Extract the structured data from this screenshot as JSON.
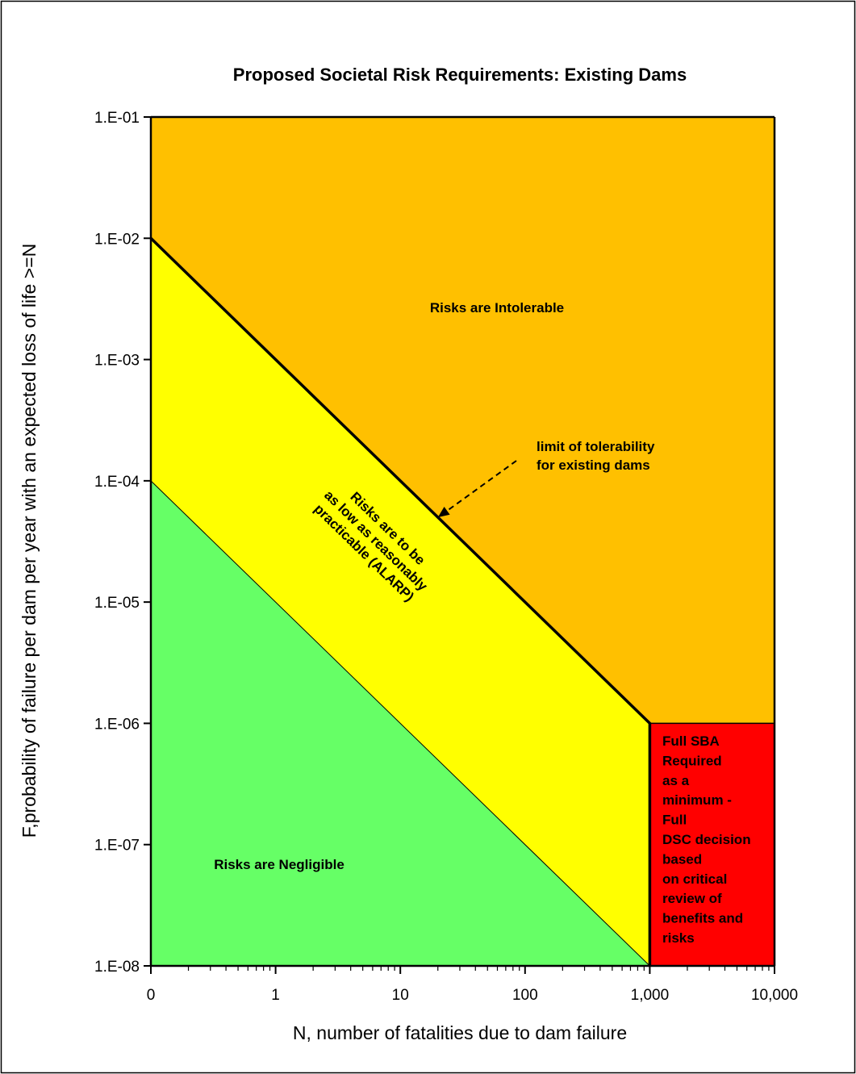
{
  "chart_data": {
    "type": "area",
    "title": "Proposed Societal Risk Requirements: Existing Dams",
    "xlabel": "N, number of fatalities due to dam failure",
    "ylabel": "F,probability of failure per dam per year with an expected loss of life >=N",
    "x_scale": "log",
    "y_scale": "log",
    "x_ticks": [
      {
        "value": 0.1,
        "label": "0"
      },
      {
        "value": 1,
        "label": "1"
      },
      {
        "value": 10,
        "label": "10"
      },
      {
        "value": 100,
        "label": "100"
      },
      {
        "value": 1000,
        "label": "1,000"
      },
      {
        "value": 10000,
        "label": "10,000"
      }
    ],
    "y_ticks": [
      {
        "value": 0.1,
        "label": "1.E-01"
      },
      {
        "value": 0.01,
        "label": "1.E-02"
      },
      {
        "value": 0.001,
        "label": "1.E-03"
      },
      {
        "value": 0.0001,
        "label": "1.E-04"
      },
      {
        "value": 1e-05,
        "label": "1.E-05"
      },
      {
        "value": 1e-06,
        "label": "1.E-06"
      },
      {
        "value": 1e-07,
        "label": "1.E-07"
      },
      {
        "value": 1e-08,
        "label": "1.E-08"
      }
    ],
    "xlim": [
      0.1,
      10000
    ],
    "ylim": [
      1e-08,
      0.1
    ],
    "regions": [
      {
        "label": "Risks are Intolerable",
        "color": "#ffc000",
        "points": [
          [
            0.1,
            0.1
          ],
          [
            10000,
            0.1
          ],
          [
            10000,
            1e-06
          ],
          [
            1000,
            1e-06
          ],
          [
            0.1,
            0.01
          ]
        ]
      },
      {
        "label": "Risks are to be as low as reasonably practicable (ALARP)",
        "lines": [
          "Risks are to be",
          "as low as reasonably",
          "practicable (ALARP)"
        ],
        "color": "#ffff00",
        "points": [
          [
            0.1,
            0.01
          ],
          [
            1000,
            1e-06
          ],
          [
            1000,
            1e-08
          ],
          [
            0.1,
            0.0001
          ]
        ]
      },
      {
        "label": "Risks are Negligible",
        "color": "#66ff66",
        "points": [
          [
            0.1,
            0.0001
          ],
          [
            1000,
            1e-08
          ],
          [
            0.1,
            1e-08
          ]
        ]
      },
      {
        "label": "Full SBA Required as a minimum - Full DSC decision based on critical review of benefits and risks",
        "lines": [
          "Full SBA",
          "Required",
          "as a",
          "minimum -",
          "Full",
          "DSC decision",
          "based",
          "on critical",
          "review of",
          "benefits and",
          "risks"
        ],
        "color": "#ff0000",
        "points": [
          [
            1000,
            1e-06
          ],
          [
            10000,
            1e-06
          ],
          [
            10000,
            1e-08
          ],
          [
            1000,
            1e-08
          ]
        ]
      }
    ],
    "limit_line": {
      "points": [
        [
          0.1,
          0.01
        ],
        [
          1000,
          1e-06
        ],
        [
          1000,
          1e-08
        ]
      ]
    },
    "negligible_line": {
      "points": [
        [
          0.1,
          0.0001
        ],
        [
          1000,
          1e-08
        ]
      ]
    },
    "annotation": {
      "lines": [
        "limit of tolerability",
        "for existing dams"
      ],
      "arrow_target": [
        20,
        5e-05
      ]
    },
    "grid": false,
    "legend": "none"
  }
}
